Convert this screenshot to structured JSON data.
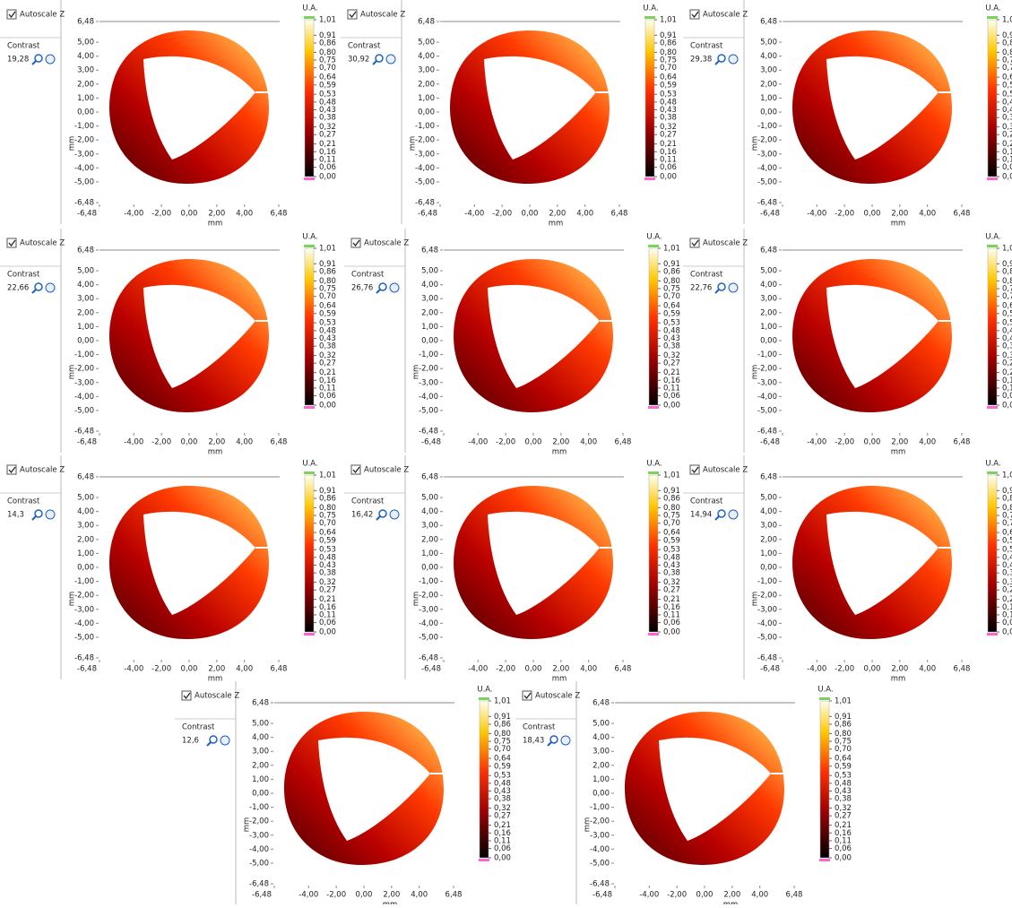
{
  "autoscale_label": "Autoscale Z",
  "contrast_label": "Contrast",
  "axis_label": "mm",
  "colorbar_unit": "U.A.",
  "panels": [
    {
      "contrast": "19,28"
    },
    {
      "contrast": "30,92"
    },
    {
      "contrast": "29,38"
    },
    {
      "contrast": "22,66"
    },
    {
      "contrast": "26,76"
    },
    {
      "contrast": "22,76"
    },
    {
      "contrast": "14,3"
    },
    {
      "contrast": "16,42"
    },
    {
      "contrast": "14,94"
    },
    {
      "contrast": "12,6"
    },
    {
      "contrast": "18,43"
    }
  ],
  "xticks": [
    {
      "value": -6.48,
      "label": "-6,48"
    },
    {
      "value": -4,
      "label": "-4,00"
    },
    {
      "value": -2,
      "label": "-2,00"
    },
    {
      "value": 0,
      "label": "0,00"
    },
    {
      "value": 2,
      "label": "2,00"
    },
    {
      "value": 4,
      "label": "4,00"
    },
    {
      "value": 6.48,
      "label": "6,48"
    }
  ],
  "yticks": [
    {
      "value": 6.48,
      "label": "6,48"
    },
    {
      "value": 5,
      "label": "5,00"
    },
    {
      "value": 4,
      "label": "4,00"
    },
    {
      "value": 3,
      "label": "3,00"
    },
    {
      "value": 2,
      "label": "2,00"
    },
    {
      "value": 1,
      "label": "1,00"
    },
    {
      "value": 0,
      "label": "0,00"
    },
    {
      "value": -1,
      "label": "-1,00"
    },
    {
      "value": -2,
      "label": "-2,00"
    },
    {
      "value": -3,
      "label": "-3,00"
    },
    {
      "value": -4,
      "label": "-4,00"
    },
    {
      "value": -5,
      "label": "-5,00"
    },
    {
      "value": -6.48,
      "label": "-6,48"
    }
  ],
  "colorbar_ticks": [
    {
      "value": 1.01,
      "label": "1,01"
    },
    {
      "value": 0.91,
      "label": "0,91"
    },
    {
      "value": 0.86,
      "label": "0,86"
    },
    {
      "value": 0.8,
      "label": "0,80"
    },
    {
      "value": 0.75,
      "label": "0,75"
    },
    {
      "value": 0.7,
      "label": "0,70"
    },
    {
      "value": 0.64,
      "label": "0,64"
    },
    {
      "value": 0.59,
      "label": "0,59"
    },
    {
      "value": 0.53,
      "label": "0,53"
    },
    {
      "value": 0.48,
      "label": "0,48"
    },
    {
      "value": 0.43,
      "label": "0,43"
    },
    {
      "value": 0.38,
      "label": "0,38"
    },
    {
      "value": 0.32,
      "label": "0,32"
    },
    {
      "value": 0.27,
      "label": "0,27"
    },
    {
      "value": 0.21,
      "label": "0,21"
    },
    {
      "value": 0.16,
      "label": "0,16"
    },
    {
      "value": 0.11,
      "label": "0,11"
    },
    {
      "value": 0.06,
      "label": "0,06"
    },
    {
      "value": 0,
      "label": "0,00"
    }
  ]
}
